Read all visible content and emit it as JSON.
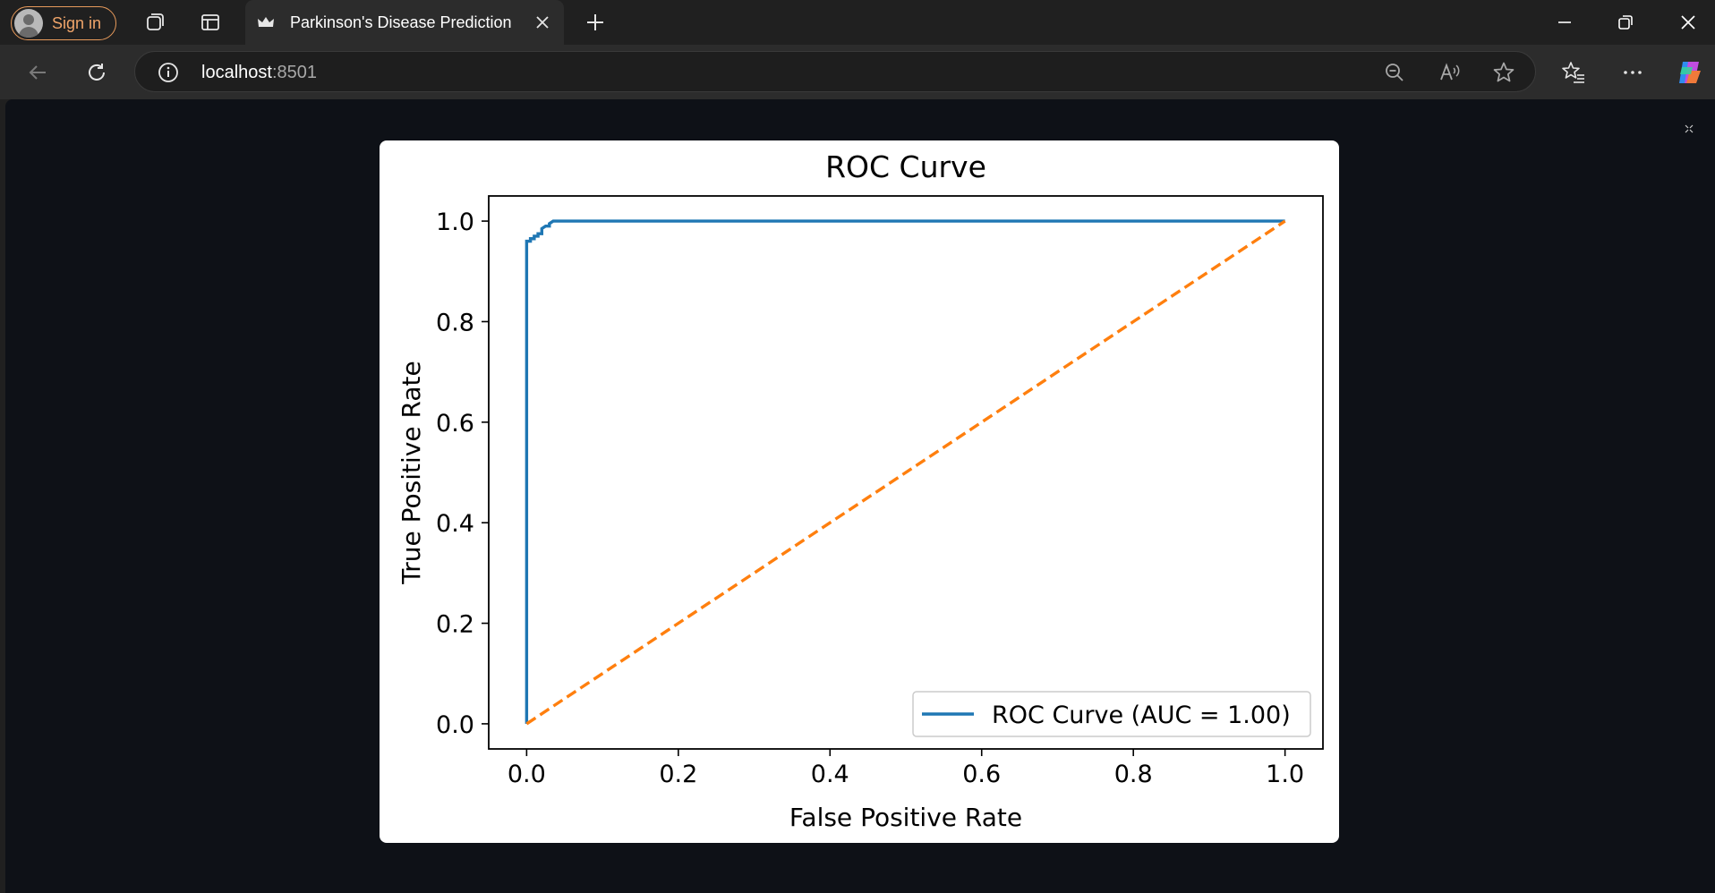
{
  "browser": {
    "sign_in_label": "Sign in",
    "tab_title": "Parkinson's Disease Prediction",
    "address_host": "localhost",
    "address_port": ":8501",
    "icons": {
      "workspaces": "workspaces-icon",
      "tab_actions": "tab-actions-icon",
      "favicon": "streamlit-crown-icon",
      "close_tab": "close-icon",
      "new_tab": "plus-icon",
      "minimize": "minimize-icon",
      "restore": "restore-icon",
      "close_window": "close-icon",
      "back": "back-arrow-icon",
      "refresh": "refresh-icon",
      "site_info": "info-icon",
      "zoom": "zoom-out-icon",
      "read_aloud": "read-aloud-icon",
      "favorite": "star-icon",
      "favorites": "favorites-icon",
      "more": "more-icon",
      "copilot": "copilot-icon"
    }
  },
  "chart_data": {
    "type": "line",
    "title": "ROC Curve",
    "xlabel": "False Positive Rate",
    "ylabel": "True Positive Rate",
    "xlim": [
      -0.05,
      1.05
    ],
    "ylim": [
      -0.05,
      1.05
    ],
    "xticks": [
      "0.0",
      "0.2",
      "0.4",
      "0.6",
      "0.8",
      "1.0"
    ],
    "yticks": [
      "0.0",
      "0.2",
      "0.4",
      "0.6",
      "0.8",
      "1.0"
    ],
    "grid": false,
    "legend": {
      "position": "lower-right",
      "entries": [
        "ROC Curve (AUC = 1.00)"
      ]
    },
    "colors": {
      "roc": "#1f77b4",
      "diagonal": "#ff7f0e"
    },
    "series": [
      {
        "name": "ROC Curve (AUC = 1.00)",
        "style": "solid",
        "x": [
          0.0,
          0.0,
          0.0,
          0.005,
          0.005,
          0.01,
          0.01,
          0.015,
          0.015,
          0.02,
          0.02,
          0.025,
          0.03,
          0.03,
          0.035,
          0.055,
          1.0
        ],
        "y": [
          0.0,
          0.95,
          0.96,
          0.96,
          0.965,
          0.965,
          0.97,
          0.97,
          0.975,
          0.975,
          0.985,
          0.99,
          0.99,
          0.995,
          1.0,
          1.0,
          1.0
        ]
      },
      {
        "name": "",
        "style": "dashed",
        "x": [
          0.0,
          1.0
        ],
        "y": [
          0.0,
          1.0
        ]
      }
    ]
  }
}
